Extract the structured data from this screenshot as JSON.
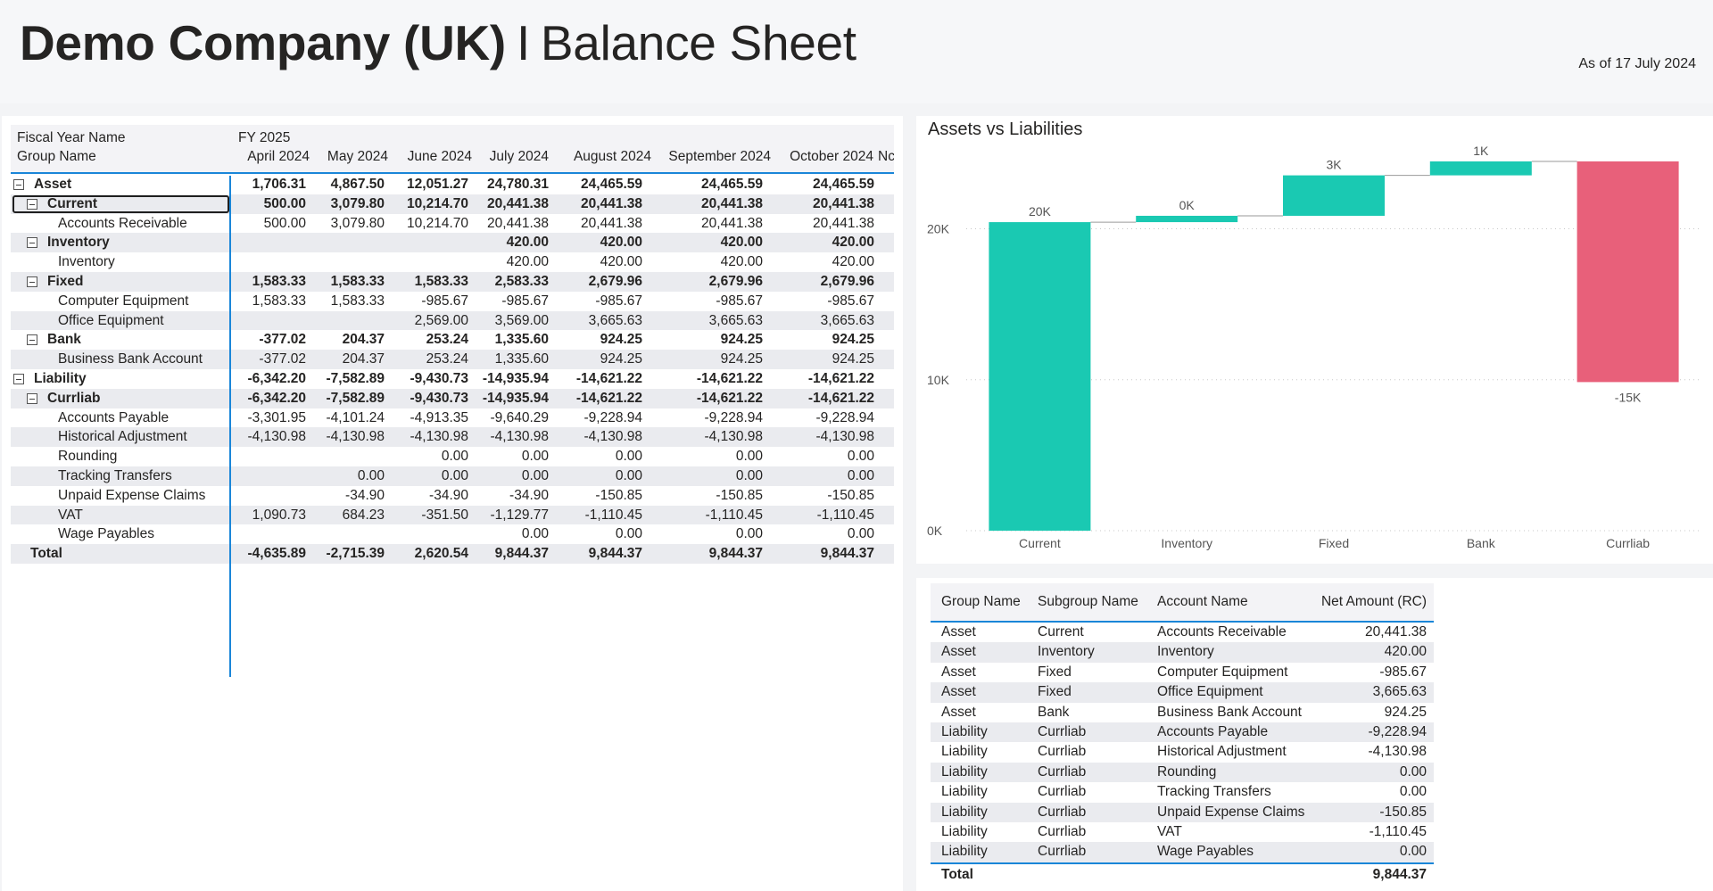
{
  "header": {
    "company": "Demo Company (UK)",
    "separator": "I",
    "report": "Balance Sheet",
    "as_of": "As of 17 July 2024"
  },
  "matrix": {
    "fiscal_year_label": "Fiscal Year Name",
    "fiscal_year_value": "FY 2025",
    "group_label": "Group Name",
    "columns": [
      "April 2024",
      "May 2024",
      "June 2024",
      "July 2024",
      "August 2024",
      "September 2024",
      "October 2024",
      "Nc"
    ],
    "rows": [
      {
        "label": "Asset",
        "level": 0,
        "toggle": true,
        "bold": true,
        "values": [
          "1,706.31",
          "4,867.50",
          "12,051.27",
          "24,780.31",
          "24,465.59",
          "24,465.59",
          "24,465.59"
        ]
      },
      {
        "label": "Current",
        "level": 1,
        "toggle": true,
        "bold": true,
        "focused": true,
        "values": [
          "500.00",
          "3,079.80",
          "10,214.70",
          "20,441.38",
          "20,441.38",
          "20,441.38",
          "20,441.38"
        ]
      },
      {
        "label": "Accounts Receivable",
        "level": 2,
        "toggle": false,
        "bold": false,
        "values": [
          "500.00",
          "3,079.80",
          "10,214.70",
          "20,441.38",
          "20,441.38",
          "20,441.38",
          "20,441.38"
        ]
      },
      {
        "label": "Inventory",
        "level": 1,
        "toggle": true,
        "bold": true,
        "values": [
          "",
          "",
          "",
          "420.00",
          "420.00",
          "420.00",
          "420.00"
        ]
      },
      {
        "label": "Inventory",
        "level": 2,
        "toggle": false,
        "bold": false,
        "values": [
          "",
          "",
          "",
          "420.00",
          "420.00",
          "420.00",
          "420.00"
        ]
      },
      {
        "label": "Fixed",
        "level": 1,
        "toggle": true,
        "bold": true,
        "values": [
          "1,583.33",
          "1,583.33",
          "1,583.33",
          "2,583.33",
          "2,679.96",
          "2,679.96",
          "2,679.96"
        ]
      },
      {
        "label": "Computer Equipment",
        "level": 2,
        "toggle": false,
        "bold": false,
        "values": [
          "1,583.33",
          "1,583.33",
          "-985.67",
          "-985.67",
          "-985.67",
          "-985.67",
          "-985.67"
        ]
      },
      {
        "label": "Office Equipment",
        "level": 2,
        "toggle": false,
        "bold": false,
        "values": [
          "",
          "",
          "2,569.00",
          "3,569.00",
          "3,665.63",
          "3,665.63",
          "3,665.63"
        ]
      },
      {
        "label": "Bank",
        "level": 1,
        "toggle": true,
        "bold": true,
        "values": [
          "-377.02",
          "204.37",
          "253.24",
          "1,335.60",
          "924.25",
          "924.25",
          "924.25"
        ]
      },
      {
        "label": "Business Bank Account",
        "level": 2,
        "toggle": false,
        "bold": false,
        "values": [
          "-377.02",
          "204.37",
          "253.24",
          "1,335.60",
          "924.25",
          "924.25",
          "924.25"
        ]
      },
      {
        "label": "Liability",
        "level": 0,
        "toggle": true,
        "bold": true,
        "values": [
          "-6,342.20",
          "-7,582.89",
          "-9,430.73",
          "-14,935.94",
          "-14,621.22",
          "-14,621.22",
          "-14,621.22"
        ]
      },
      {
        "label": "Currliab",
        "level": 1,
        "toggle": true,
        "bold": true,
        "values": [
          "-6,342.20",
          "-7,582.89",
          "-9,430.73",
          "-14,935.94",
          "-14,621.22",
          "-14,621.22",
          "-14,621.22"
        ]
      },
      {
        "label": "Accounts Payable",
        "level": 2,
        "toggle": false,
        "bold": false,
        "values": [
          "-3,301.95",
          "-4,101.24",
          "-4,913.35",
          "-9,640.29",
          "-9,228.94",
          "-9,228.94",
          "-9,228.94"
        ]
      },
      {
        "label": "Historical Adjustment",
        "level": 2,
        "toggle": false,
        "bold": false,
        "values": [
          "-4,130.98",
          "-4,130.98",
          "-4,130.98",
          "-4,130.98",
          "-4,130.98",
          "-4,130.98",
          "-4,130.98"
        ]
      },
      {
        "label": "Rounding",
        "level": 2,
        "toggle": false,
        "bold": false,
        "values": [
          "",
          "",
          "0.00",
          "0.00",
          "0.00",
          "0.00",
          "0.00"
        ]
      },
      {
        "label": "Tracking Transfers",
        "level": 2,
        "toggle": false,
        "bold": false,
        "values": [
          "",
          "0.00",
          "0.00",
          "0.00",
          "0.00",
          "0.00",
          "0.00"
        ]
      },
      {
        "label": "Unpaid Expense Claims",
        "level": 2,
        "toggle": false,
        "bold": false,
        "values": [
          "",
          "-34.90",
          "-34.90",
          "-34.90",
          "-150.85",
          "-150.85",
          "-150.85"
        ]
      },
      {
        "label": "VAT",
        "level": 2,
        "toggle": false,
        "bold": false,
        "values": [
          "1,090.73",
          "684.23",
          "-351.50",
          "-1,129.77",
          "-1,110.45",
          "-1,110.45",
          "-1,110.45"
        ]
      },
      {
        "label": "Wage Payables",
        "level": 2,
        "toggle": false,
        "bold": false,
        "values": [
          "",
          "",
          "",
          "0.00",
          "0.00",
          "0.00",
          "0.00"
        ]
      },
      {
        "label": "Total",
        "level": 0,
        "toggle": false,
        "bold": true,
        "values": [
          "-4,635.89",
          "-2,715.39",
          "2,620.54",
          "9,844.37",
          "9,844.37",
          "9,844.37",
          "9,844.37"
        ]
      }
    ]
  },
  "chart": {
    "title": "Assets vs Liabilities",
    "colors": {
      "increase": "#1ac9b2",
      "decrease": "#e8607a",
      "connector": "#9a9a9a",
      "grid": "#c8c8c8"
    }
  },
  "chart_data": {
    "type": "waterfall",
    "title": "Assets vs Liabilities",
    "categories": [
      "Current",
      "Inventory",
      "Fixed",
      "Bank",
      "Currliab"
    ],
    "values": [
      20441.38,
      420.0,
      2679.96,
      924.25,
      -14621.22
    ],
    "data_labels": [
      "20K",
      "0K",
      "3K",
      "1K",
      "-15K"
    ],
    "y_ticks": [
      "0K",
      "10K",
      "20K"
    ],
    "ylim": [
      0,
      26000
    ],
    "grid": true,
    "legend": "none"
  },
  "detail_table": {
    "headers": [
      "Group Name",
      "Subgroup Name",
      "Account Name",
      "Net Amount (RC)"
    ],
    "rows": [
      [
        "Asset",
        "Current",
        "Accounts Receivable",
        "20,441.38"
      ],
      [
        "Asset",
        "Inventory",
        "Inventory",
        "420.00"
      ],
      [
        "Asset",
        "Fixed",
        "Computer Equipment",
        "-985.67"
      ],
      [
        "Asset",
        "Fixed",
        "Office Equipment",
        "3,665.63"
      ],
      [
        "Asset",
        "Bank",
        "Business Bank Account",
        "924.25"
      ],
      [
        "Liability",
        "Currliab",
        "Accounts Payable",
        "-9,228.94"
      ],
      [
        "Liability",
        "Currliab",
        "Historical Adjustment",
        "-4,130.98"
      ],
      [
        "Liability",
        "Currliab",
        "Rounding",
        "0.00"
      ],
      [
        "Liability",
        "Currliab",
        "Tracking Transfers",
        "0.00"
      ],
      [
        "Liability",
        "Currliab",
        "Unpaid Expense Claims",
        "-150.85"
      ],
      [
        "Liability",
        "Currliab",
        "VAT",
        "-1,110.45"
      ],
      [
        "Liability",
        "Currliab",
        "Wage Payables",
        "0.00"
      ]
    ],
    "total_label": "Total",
    "total_value": "9,844.37"
  }
}
